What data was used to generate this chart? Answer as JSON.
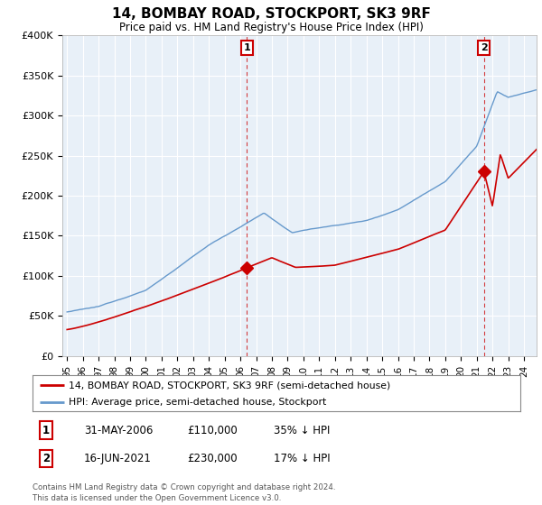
{
  "title": "14, BOMBAY ROAD, STOCKPORT, SK3 9RF",
  "subtitle": "Price paid vs. HM Land Registry's House Price Index (HPI)",
  "ylim": [
    0,
    400000
  ],
  "yticks": [
    0,
    50000,
    100000,
    150000,
    200000,
    250000,
    300000,
    350000,
    400000
  ],
  "ytick_labels": [
    "£0",
    "£50K",
    "£100K",
    "£150K",
    "£200K",
    "£250K",
    "£300K",
    "£350K",
    "£400K"
  ],
  "hpi_color": "#6699cc",
  "hpi_fill_color": "#dce9f5",
  "price_color": "#cc0000",
  "sale1_year": 2006.42,
  "sale1_price": 110000,
  "sale2_year": 2021.46,
  "sale2_price": 230000,
  "legend_line1": "14, BOMBAY ROAD, STOCKPORT, SK3 9RF (semi-detached house)",
  "legend_line2": "HPI: Average price, semi-detached house, Stockport",
  "table_row1": [
    "1",
    "31-MAY-2006",
    "£110,000",
    "35% ↓ HPI"
  ],
  "table_row2": [
    "2",
    "16-JUN-2021",
    "£230,000",
    "17% ↓ HPI"
  ],
  "footer": "Contains HM Land Registry data © Crown copyright and database right 2024.\nThis data is licensed under the Open Government Licence v3.0.",
  "background_color": "#ffffff",
  "chart_bg_color": "#e8f0f8",
  "grid_color": "#ffffff"
}
